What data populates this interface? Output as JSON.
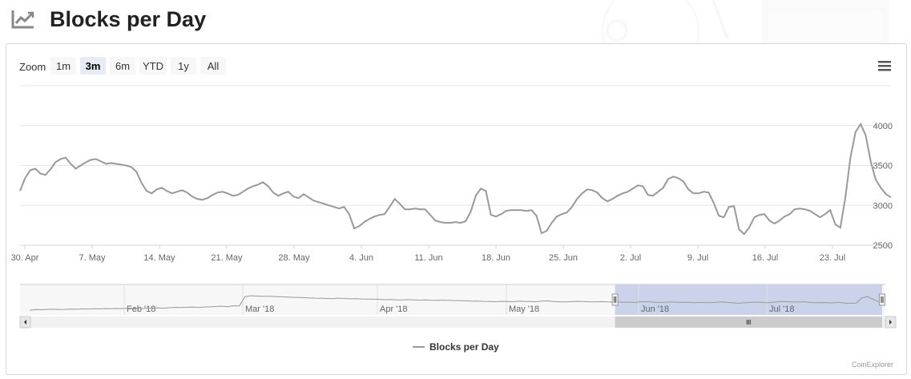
{
  "header": {
    "title": "Blocks per Day",
    "icon": "trend-chart-icon"
  },
  "toolbar": {
    "zoom_label": "Zoom",
    "buttons": [
      {
        "label": "1m",
        "selected": false
      },
      {
        "label": "3m",
        "selected": true
      },
      {
        "label": "6m",
        "selected": false
      },
      {
        "label": "YTD",
        "selected": false
      },
      {
        "label": "1y",
        "selected": false
      },
      {
        "label": "All",
        "selected": false
      }
    ],
    "menu_icon": "hamburger-menu-icon"
  },
  "chart_data": {
    "type": "line",
    "series": [
      {
        "name": "Blocks per Day",
        "color": "#999999"
      }
    ],
    "x_start_label": "30. Apr",
    "x_ticks": [
      "30. Apr",
      "7. May",
      "14. May",
      "21. May",
      "28. May",
      "4. Jun",
      "11. Jun",
      "18. Jun",
      "25. Jun",
      "2. Jul",
      "9. Jul",
      "16. Jul",
      "23. Jul"
    ],
    "y_ticks": [
      2500,
      3000,
      3500,
      4000
    ],
    "ylim": [
      2500,
      4500
    ],
    "grid": true,
    "legend_position": "bottom-center",
    "y": [
      3180,
      3340,
      3440,
      3460,
      3400,
      3380,
      3450,
      3540,
      3580,
      3600,
      3520,
      3460,
      3500,
      3540,
      3570,
      3580,
      3550,
      3520,
      3530,
      3520,
      3510,
      3500,
      3480,
      3420,
      3280,
      3180,
      3150,
      3200,
      3220,
      3180,
      3150,
      3170,
      3190,
      3160,
      3110,
      3080,
      3070,
      3090,
      3130,
      3160,
      3170,
      3150,
      3120,
      3130,
      3170,
      3210,
      3240,
      3260,
      3290,
      3240,
      3160,
      3120,
      3150,
      3170,
      3110,
      3090,
      3140,
      3100,
      3060,
      3040,
      3020,
      3000,
      2980,
      2960,
      2980,
      2890,
      2710,
      2740,
      2790,
      2830,
      2860,
      2880,
      2890,
      2980,
      3080,
      3020,
      2950,
      2950,
      2960,
      2950,
      2950,
      2880,
      2810,
      2790,
      2780,
      2780,
      2790,
      2780,
      2800,
      2920,
      3120,
      3210,
      3180,
      2880,
      2860,
      2890,
      2930,
      2940,
      2940,
      2940,
      2930,
      2940,
      2870,
      2650,
      2680,
      2780,
      2860,
      2890,
      2910,
      2980,
      3080,
      3150,
      3200,
      3190,
      3160,
      3090,
      3050,
      3080,
      3120,
      3150,
      3170,
      3210,
      3250,
      3240,
      3130,
      3120,
      3170,
      3220,
      3330,
      3360,
      3340,
      3300,
      3200,
      3150,
      3150,
      3170,
      3160,
      3030,
      2870,
      2850,
      2980,
      2990,
      2700,
      2640,
      2720,
      2850,
      2880,
      2890,
      2810,
      2770,
      2810,
      2860,
      2890,
      2950,
      2960,
      2950,
      2930,
      2890,
      2850,
      2890,
      2940,
      2760,
      2720,
      3100,
      3600,
      3920,
      4020,
      3880,
      3550,
      3320,
      3220,
      3140,
      3100
    ]
  },
  "navigator": {
    "labels": [
      "Feb '18",
      "Mar '18",
      "Apr '18",
      "May '18",
      "Jun '18",
      "Jul '18"
    ],
    "range_start_fraction": 0.67,
    "range_end_fraction": 1.0,
    "y": [
      2600,
      2650,
      2640,
      2660,
      2670,
      2650,
      2660,
      2680,
      2670,
      2690,
      2680,
      2700,
      2690,
      2710,
      2700,
      2720,
      2710,
      2730,
      2740,
      2720,
      2730,
      2750,
      2760,
      2740,
      2770,
      2790,
      2780,
      2800,
      2810,
      2790,
      2820,
      2830,
      2850,
      2870,
      2840,
      2900,
      2880,
      3500,
      3560,
      3540,
      3520,
      3530,
      3510,
      3500,
      3480,
      3460,
      3450,
      3440,
      3420,
      3400,
      3390,
      3380,
      3370,
      3400,
      3380,
      3360,
      3370,
      3350,
      3340,
      3330,
      3320,
      3300,
      3310,
      3290,
      3280,
      3300,
      3290,
      3270,
      3280,
      3260,
      3250,
      3270,
      3250,
      3240,
      3230,
      3220,
      3200,
      3210,
      3190,
      3180,
      3170,
      3190,
      3180,
      3170,
      3200,
      3190,
      3180,
      3170,
      3210,
      3220,
      3180,
      3160,
      3150,
      3170,
      3190,
      3180,
      3160,
      3150,
      3170,
      3160,
      3140,
      3150,
      3130,
      3140,
      3120,
      3160,
      3170,
      3140,
      3120,
      3130,
      3150,
      3140,
      3120,
      3130,
      3100,
      3120,
      3100,
      3110,
      3130,
      3150,
      3120,
      3090,
      3060,
      3100,
      3120,
      3140,
      3110,
      3100,
      3140,
      3180,
      3170,
      3150,
      3140,
      3160,
      3120,
      3100,
      3110,
      3100,
      3090,
      3120,
      3080,
      3060,
      3070,
      3420,
      3500,
      3300,
      3150,
      3120
    ],
    "colors": {
      "selection": "#c3cce7",
      "scrollbar_track": "#f1f1f1",
      "scrollbar_thumb": "#cccccc"
    }
  },
  "credits": "CoinExplorer"
}
